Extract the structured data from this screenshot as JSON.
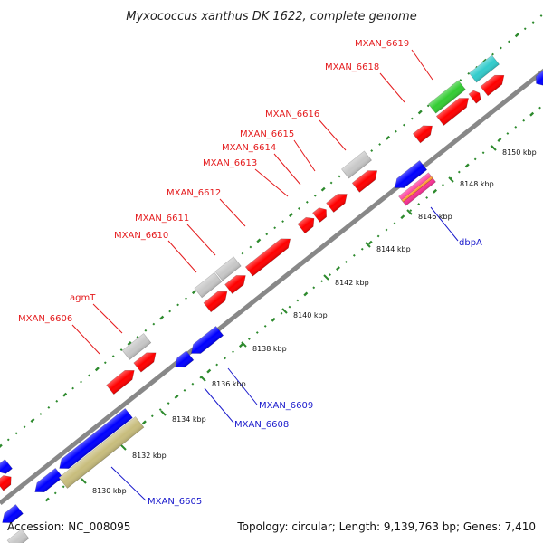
{
  "map": {
    "title": "Myxococcus xanthus DK 1622, complete genome",
    "footer_accession": "Accession: NC_008095",
    "footer_info": "Topology: circular; Length: 9,139,763 bp; Genes: 7,410",
    "colors": {
      "backbone": "#888888",
      "forward": "#ff0000",
      "reverse": "#0000ff",
      "grey": "#c8c8c8",
      "green": "#33cc33",
      "cyan": "#33cccc",
      "olive": "#c8bd7d",
      "magenta": "#ff3399",
      "orange": "#ff9933",
      "tick": "#2d8a2d",
      "label_forward": "#e41a1c",
      "label_reverse": "#1a1acc"
    },
    "ticks": [
      "8130 kbp",
      "8132 kbp",
      "8134 kbp",
      "8136 kbp",
      "8138 kbp",
      "8140 kbp",
      "8142 kbp",
      "8144 kbp",
      "8146 kbp",
      "8148 kbp",
      "8150 kbp"
    ],
    "gene_labels_forward": [
      "MXAN_6619",
      "MXAN_6618",
      "MXAN_6616",
      "MXAN_6615",
      "MXAN_6614",
      "MXAN_6613",
      "MXAN_6612",
      "MXAN_6611",
      "MXAN_6610",
      "agmT",
      "MXAN_6606"
    ],
    "gene_labels_reverse": [
      "dbpA",
      "MXAN_6609",
      "MXAN_6608",
      "MXAN_6605"
    ]
  }
}
